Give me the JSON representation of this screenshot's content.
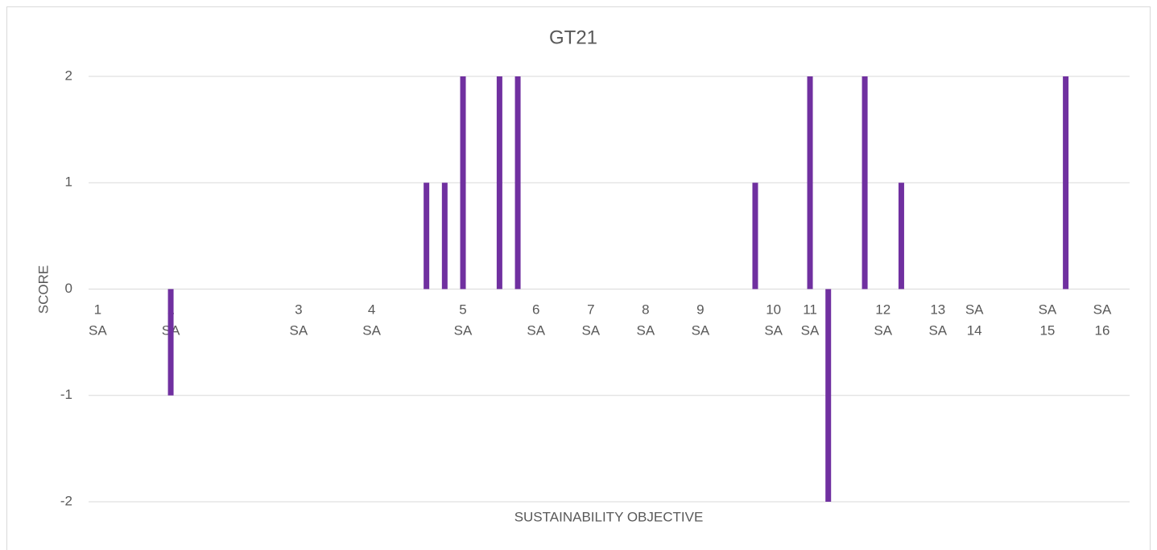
{
  "chart_data": {
    "type": "bar",
    "title": "GT21",
    "x_label": "SUSTAINABILITY OBJECTIVE",
    "y_label": "SCORE",
    "categories": [
      "1 SA",
      null,
      null,
      null,
      "1 SA",
      null,
      null,
      null,
      null,
      null,
      null,
      "3 SA",
      null,
      null,
      null,
      "4 SA",
      null,
      null,
      null,
      null,
      "5 SA",
      null,
      null,
      null,
      "6 SA",
      null,
      null,
      "7 SA",
      null,
      null,
      "8 SA",
      null,
      null,
      "9 SA",
      null,
      null,
      null,
      "10 SA",
      null,
      "11 SA",
      null,
      null,
      null,
      "12 SA",
      null,
      null,
      "13 SA",
      null,
      "SA 14",
      null,
      null,
      null,
      "SA 15",
      null,
      null,
      "SA 16",
      null
    ],
    "values": [
      null,
      null,
      null,
      null,
      -1,
      null,
      null,
      null,
      null,
      null,
      null,
      null,
      null,
      null,
      null,
      null,
      null,
      null,
      1,
      1,
      2,
      null,
      2,
      2,
      null,
      null,
      null,
      null,
      null,
      null,
      null,
      null,
      null,
      null,
      null,
      null,
      1,
      null,
      null,
      2,
      -2,
      null,
      2,
      null,
      1,
      null,
      null,
      null,
      null,
      null,
      null,
      null,
      null,
      2,
      null,
      null,
      null
    ],
    "color": "#7030a0",
    "ylim": [
      -2,
      2
    ],
    "yticks": [
      -2,
      -1,
      0,
      1,
      2
    ],
    "grid": true
  }
}
